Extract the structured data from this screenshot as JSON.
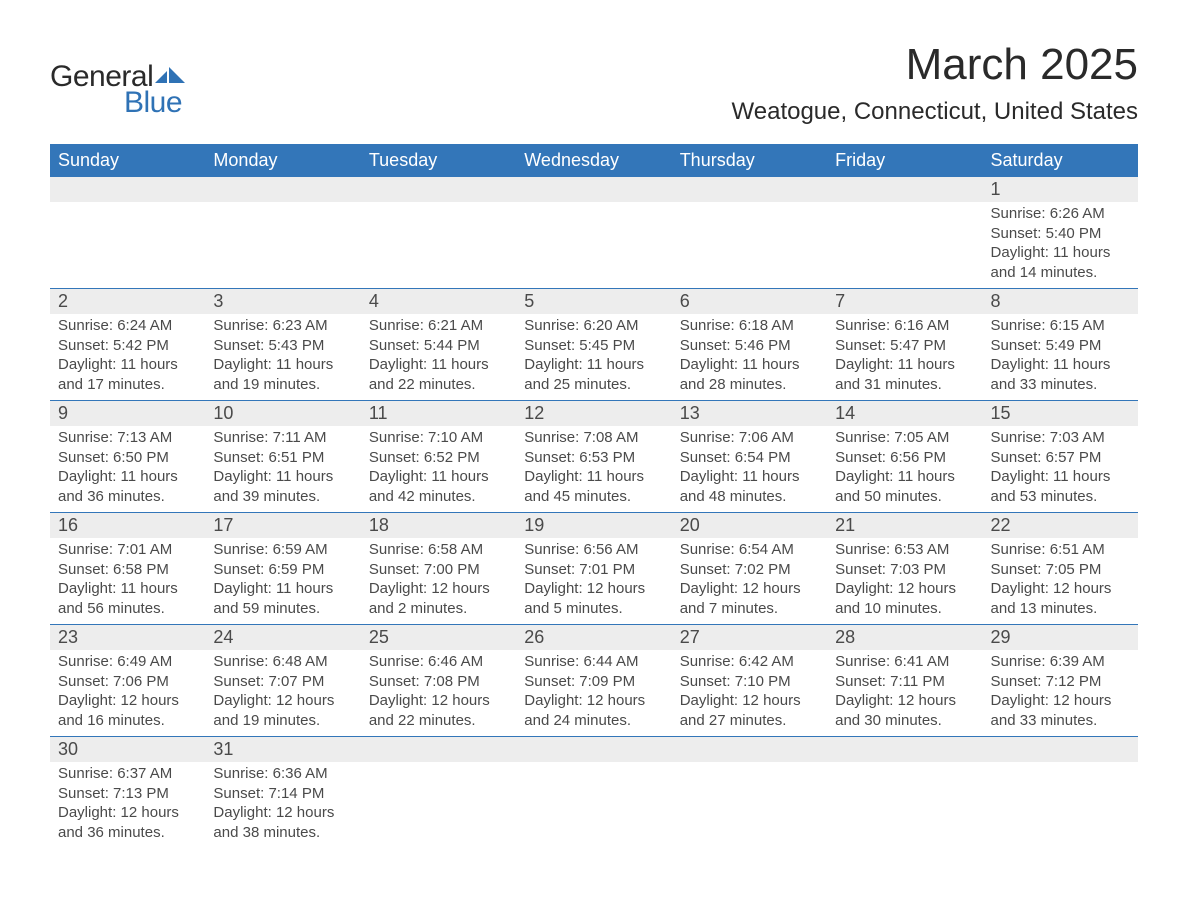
{
  "logo": {
    "text_general": "General",
    "text_blue": "Blue",
    "mark_color": "#2f72b5"
  },
  "header": {
    "month_title": "March 2025",
    "location": "Weatogue, Connecticut, United States"
  },
  "calendar": {
    "type": "table",
    "header_bg": "#3376b9",
    "header_fg": "#ffffff",
    "daynum_bg": "#ededed",
    "border_color": "#3376b9",
    "text_color": "#4a4a4a",
    "background_color": "#ffffff",
    "title_fontsize": 44,
    "location_fontsize": 24,
    "header_fontsize": 18,
    "daynum_fontsize": 18,
    "body_fontsize": 15,
    "columns": [
      "Sunday",
      "Monday",
      "Tuesday",
      "Wednesday",
      "Thursday",
      "Friday",
      "Saturday"
    ],
    "weeks": [
      [
        {
          "n": "",
          "sr": "",
          "ss": "",
          "dl": ""
        },
        {
          "n": "",
          "sr": "",
          "ss": "",
          "dl": ""
        },
        {
          "n": "",
          "sr": "",
          "ss": "",
          "dl": ""
        },
        {
          "n": "",
          "sr": "",
          "ss": "",
          "dl": ""
        },
        {
          "n": "",
          "sr": "",
          "ss": "",
          "dl": ""
        },
        {
          "n": "",
          "sr": "",
          "ss": "",
          "dl": ""
        },
        {
          "n": "1",
          "sr": "Sunrise: 6:26 AM",
          "ss": "Sunset: 5:40 PM",
          "dl": "Daylight: 11 hours and 14 minutes."
        }
      ],
      [
        {
          "n": "2",
          "sr": "Sunrise: 6:24 AM",
          "ss": "Sunset: 5:42 PM",
          "dl": "Daylight: 11 hours and 17 minutes."
        },
        {
          "n": "3",
          "sr": "Sunrise: 6:23 AM",
          "ss": "Sunset: 5:43 PM",
          "dl": "Daylight: 11 hours and 19 minutes."
        },
        {
          "n": "4",
          "sr": "Sunrise: 6:21 AM",
          "ss": "Sunset: 5:44 PM",
          "dl": "Daylight: 11 hours and 22 minutes."
        },
        {
          "n": "5",
          "sr": "Sunrise: 6:20 AM",
          "ss": "Sunset: 5:45 PM",
          "dl": "Daylight: 11 hours and 25 minutes."
        },
        {
          "n": "6",
          "sr": "Sunrise: 6:18 AM",
          "ss": "Sunset: 5:46 PM",
          "dl": "Daylight: 11 hours and 28 minutes."
        },
        {
          "n": "7",
          "sr": "Sunrise: 6:16 AM",
          "ss": "Sunset: 5:47 PM",
          "dl": "Daylight: 11 hours and 31 minutes."
        },
        {
          "n": "8",
          "sr": "Sunrise: 6:15 AM",
          "ss": "Sunset: 5:49 PM",
          "dl": "Daylight: 11 hours and 33 minutes."
        }
      ],
      [
        {
          "n": "9",
          "sr": "Sunrise: 7:13 AM",
          "ss": "Sunset: 6:50 PM",
          "dl": "Daylight: 11 hours and 36 minutes."
        },
        {
          "n": "10",
          "sr": "Sunrise: 7:11 AM",
          "ss": "Sunset: 6:51 PM",
          "dl": "Daylight: 11 hours and 39 minutes."
        },
        {
          "n": "11",
          "sr": "Sunrise: 7:10 AM",
          "ss": "Sunset: 6:52 PM",
          "dl": "Daylight: 11 hours and 42 minutes."
        },
        {
          "n": "12",
          "sr": "Sunrise: 7:08 AM",
          "ss": "Sunset: 6:53 PM",
          "dl": "Daylight: 11 hours and 45 minutes."
        },
        {
          "n": "13",
          "sr": "Sunrise: 7:06 AM",
          "ss": "Sunset: 6:54 PM",
          "dl": "Daylight: 11 hours and 48 minutes."
        },
        {
          "n": "14",
          "sr": "Sunrise: 7:05 AM",
          "ss": "Sunset: 6:56 PM",
          "dl": "Daylight: 11 hours and 50 minutes."
        },
        {
          "n": "15",
          "sr": "Sunrise: 7:03 AM",
          "ss": "Sunset: 6:57 PM",
          "dl": "Daylight: 11 hours and 53 minutes."
        }
      ],
      [
        {
          "n": "16",
          "sr": "Sunrise: 7:01 AM",
          "ss": "Sunset: 6:58 PM",
          "dl": "Daylight: 11 hours and 56 minutes."
        },
        {
          "n": "17",
          "sr": "Sunrise: 6:59 AM",
          "ss": "Sunset: 6:59 PM",
          "dl": "Daylight: 11 hours and 59 minutes."
        },
        {
          "n": "18",
          "sr": "Sunrise: 6:58 AM",
          "ss": "Sunset: 7:00 PM",
          "dl": "Daylight: 12 hours and 2 minutes."
        },
        {
          "n": "19",
          "sr": "Sunrise: 6:56 AM",
          "ss": "Sunset: 7:01 PM",
          "dl": "Daylight: 12 hours and 5 minutes."
        },
        {
          "n": "20",
          "sr": "Sunrise: 6:54 AM",
          "ss": "Sunset: 7:02 PM",
          "dl": "Daylight: 12 hours and 7 minutes."
        },
        {
          "n": "21",
          "sr": "Sunrise: 6:53 AM",
          "ss": "Sunset: 7:03 PM",
          "dl": "Daylight: 12 hours and 10 minutes."
        },
        {
          "n": "22",
          "sr": "Sunrise: 6:51 AM",
          "ss": "Sunset: 7:05 PM",
          "dl": "Daylight: 12 hours and 13 minutes."
        }
      ],
      [
        {
          "n": "23",
          "sr": "Sunrise: 6:49 AM",
          "ss": "Sunset: 7:06 PM",
          "dl": "Daylight: 12 hours and 16 minutes."
        },
        {
          "n": "24",
          "sr": "Sunrise: 6:48 AM",
          "ss": "Sunset: 7:07 PM",
          "dl": "Daylight: 12 hours and 19 minutes."
        },
        {
          "n": "25",
          "sr": "Sunrise: 6:46 AM",
          "ss": "Sunset: 7:08 PM",
          "dl": "Daylight: 12 hours and 22 minutes."
        },
        {
          "n": "26",
          "sr": "Sunrise: 6:44 AM",
          "ss": "Sunset: 7:09 PM",
          "dl": "Daylight: 12 hours and 24 minutes."
        },
        {
          "n": "27",
          "sr": "Sunrise: 6:42 AM",
          "ss": "Sunset: 7:10 PM",
          "dl": "Daylight: 12 hours and 27 minutes."
        },
        {
          "n": "28",
          "sr": "Sunrise: 6:41 AM",
          "ss": "Sunset: 7:11 PM",
          "dl": "Daylight: 12 hours and 30 minutes."
        },
        {
          "n": "29",
          "sr": "Sunrise: 6:39 AM",
          "ss": "Sunset: 7:12 PM",
          "dl": "Daylight: 12 hours and 33 minutes."
        }
      ],
      [
        {
          "n": "30",
          "sr": "Sunrise: 6:37 AM",
          "ss": "Sunset: 7:13 PM",
          "dl": "Daylight: 12 hours and 36 minutes."
        },
        {
          "n": "31",
          "sr": "Sunrise: 6:36 AM",
          "ss": "Sunset: 7:14 PM",
          "dl": "Daylight: 12 hours and 38 minutes."
        },
        {
          "n": "",
          "sr": "",
          "ss": "",
          "dl": ""
        },
        {
          "n": "",
          "sr": "",
          "ss": "",
          "dl": ""
        },
        {
          "n": "",
          "sr": "",
          "ss": "",
          "dl": ""
        },
        {
          "n": "",
          "sr": "",
          "ss": "",
          "dl": ""
        },
        {
          "n": "",
          "sr": "",
          "ss": "",
          "dl": ""
        }
      ]
    ]
  }
}
